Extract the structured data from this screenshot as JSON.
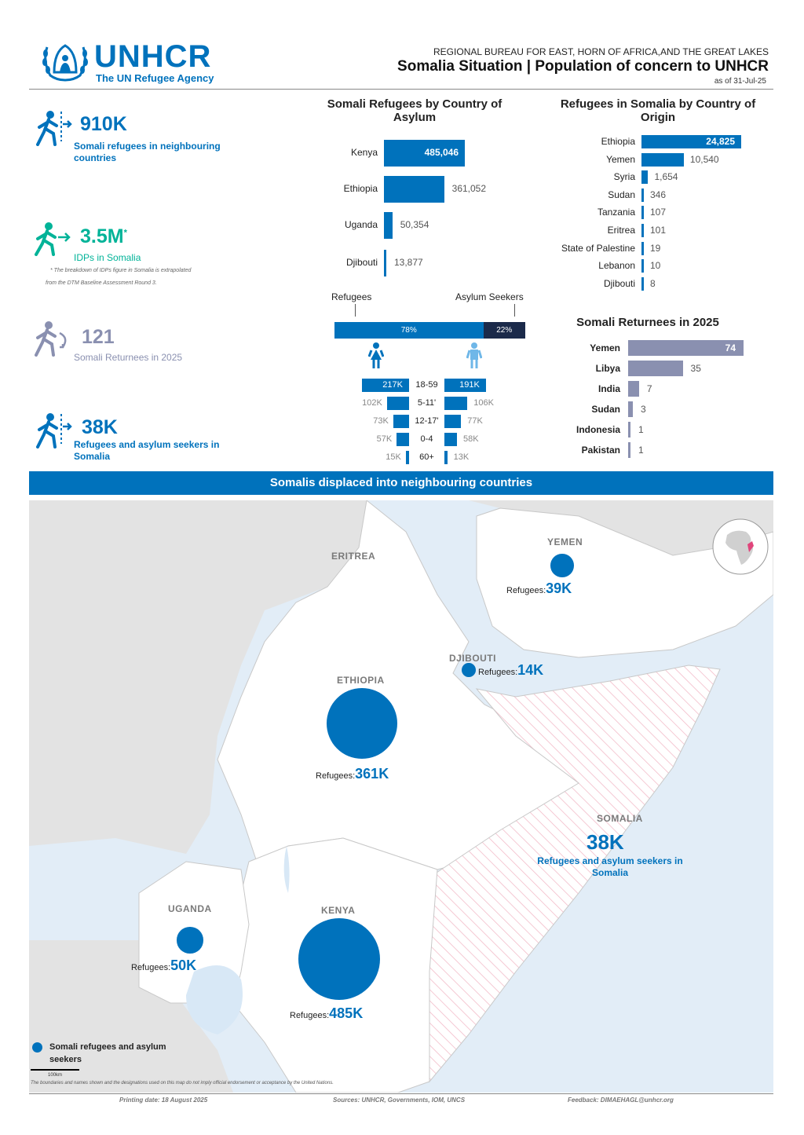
{
  "header": {
    "org_name": "UNHCR",
    "org_tagline": "The UN Refugee Agency",
    "bureau": "REGIONAL BUREAU FOR EAST, HORN OF AFRICA,AND THE GREAT LAKES",
    "title": "Somalia Situation | Population of concern to UNHCR",
    "as_of": "as of  31-Jul-25"
  },
  "kpis": [
    {
      "value": "910K",
      "label_lines": [
        "Somali refugees in neighbouring",
        "countries"
      ],
      "color": "#0072bc",
      "icon": "refugee-run-icon"
    },
    {
      "value": "3.5M",
      "value_suffix": "*",
      "label_lines": [
        "IDPs in Somalia"
      ],
      "color": "#00b398",
      "icon": "idp-run-icon"
    },
    {
      "value": "121",
      "label_lines": [
        "Somali Returnees in 2025"
      ],
      "color": "#8a90b0",
      "icon": "returnee-icon"
    },
    {
      "value": "38K",
      "label_lines": [
        "Refugees and asylum seekers in",
        "Somalia"
      ],
      "color": "#0072bc",
      "icon": "refugee-run-icon"
    }
  ],
  "idp_note": [
    "* The breakdown of IDPs figure in Somalia is extrapolated",
    "from the DTM Baseline Assessment Round 3."
  ],
  "chart_data": [
    {
      "type": "bar",
      "title": "Somali Refugees by Country of Asylum",
      "categories": [
        "Kenya",
        "Ethiopia",
        "Uganda",
        "Djibouti"
      ],
      "values": [
        485046,
        361052,
        50354,
        13877
      ],
      "value_labels": [
        "485,046",
        "361,052",
        "50,354",
        "13,877"
      ],
      "orientation": "horizontal"
    },
    {
      "type": "bar",
      "title": "Refugees in Somalia by Country of Origin",
      "categories": [
        "Ethiopia",
        "Yemen",
        "Syria",
        "Sudan",
        "Tanzania",
        "Eritrea",
        "State of Palestine",
        "Lebanon",
        "Djibouti"
      ],
      "values": [
        24825,
        10540,
        1654,
        346,
        107,
        101,
        19,
        10,
        8
      ],
      "value_labels": [
        "24,825",
        "10,540",
        "1,654",
        "346",
        "107",
        "101",
        "19",
        "10",
        "8"
      ],
      "orientation": "horizontal"
    },
    {
      "type": "bar",
      "title": "Somali Returnees in 2025",
      "categories": [
        "Yemen",
        "Libya",
        "India",
        "Sudan",
        "Indonesia",
        "Pakistan"
      ],
      "values": [
        74,
        35,
        7,
        3,
        1,
        1
      ],
      "value_labels": [
        "74",
        "35",
        "7",
        "3",
        "1",
        "1"
      ],
      "orientation": "horizontal",
      "color": "#8a90b0"
    },
    {
      "type": "bar",
      "title": "",
      "series": [
        {
          "name": "Refugees",
          "values": [
            78
          ],
          "label": "78%",
          "color": "#0072bc"
        },
        {
          "name": "Asylum Seekers",
          "values": [
            22
          ],
          "label": "22%",
          "color": "#1b2a4a"
        }
      ],
      "orientation": "stacked-horizontal"
    },
    {
      "type": "bar",
      "title": "",
      "categories": [
        "18-59",
        "5-11'",
        "12-17'",
        "0-4",
        "60+"
      ],
      "series": [
        {
          "name": "female",
          "values": [
            217,
            102,
            73,
            57,
            15
          ],
          "labels": [
            "217K",
            "102K",
            "73K",
            "57K",
            "15K"
          ]
        },
        {
          "name": "male",
          "values": [
            191,
            106,
            77,
            58,
            13
          ],
          "labels": [
            "191K",
            "106K",
            "77K",
            "58K",
            "13K"
          ]
        }
      ],
      "orientation": "population-pyramid"
    }
  ],
  "split_labels": {
    "left": "Refugees",
    "right": "Asylum Seekers"
  },
  "banner": "Somalis displaced into neighbouring countries",
  "map": {
    "countries": [
      {
        "name": "ERITREA"
      },
      {
        "name": "YEMEN",
        "ref_label": "Refugees:",
        "ref_value": "39K",
        "value": 39
      },
      {
        "name": "DJIBOUTI",
        "ref_label": "Refugees:",
        "ref_value": "14K",
        "value": 14
      },
      {
        "name": "ETHIOPIA",
        "ref_label": "Refugees:",
        "ref_value": "361K",
        "value": 361
      },
      {
        "name": "SOMALIA",
        "ref_value": "38K",
        "ref_lines": [
          "Refugees and asylum seekers in",
          "Somalia"
        ]
      },
      {
        "name": "UGANDA",
        "ref_label": "Refugees:",
        "ref_value": "50K",
        "value": 50
      },
      {
        "name": "KENYA",
        "ref_label": "Refugees:",
        "ref_value": "485K",
        "value": 485
      }
    ],
    "legend_lines": [
      "Somali refugees and asylum",
      "seekers"
    ],
    "scale": "100km",
    "disclaimer": "The boundaries and names shown and the designations used on this map do not imply official endorsement or acceptance by the United Nations."
  },
  "footer": {
    "print_date": "Printing date: 18 August 2025",
    "sources": "Sources: UNHCR, Governments, IOM, UNCS",
    "feedback": "Feedback: DIMAEHAGL@unhcr.org"
  },
  "colors": {
    "primary": "#0072bc",
    "teal": "#00b398",
    "returnee": "#8a90b0",
    "dark": "#1b2a4a"
  }
}
